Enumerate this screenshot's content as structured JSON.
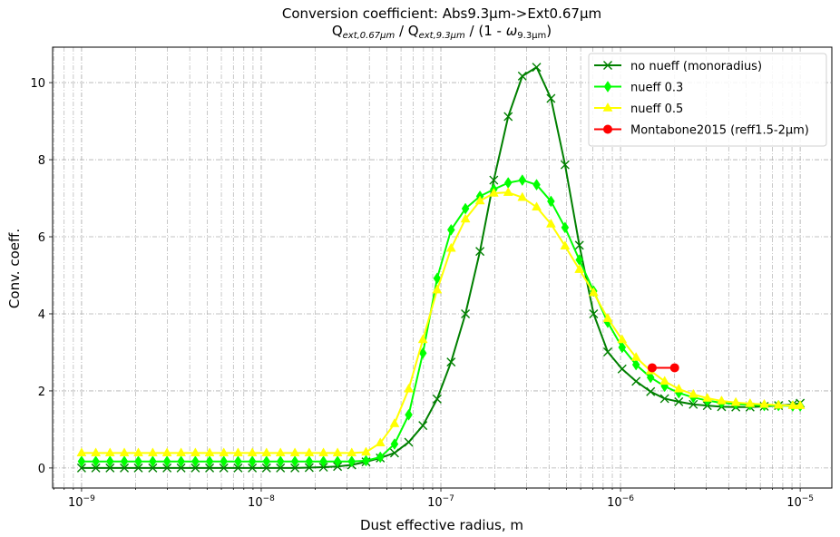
{
  "chart_data": {
    "type": "line",
    "title": "Conversion coefficient: Abs9.3µm->Ext0.67µm",
    "subtitle": {
      "q": "Q",
      "sub1": "ext,0.67µm",
      "slash1": " / Q",
      "sub2": "ext,9.3µm",
      "tail": " / (1 - ",
      "omega": "ω",
      "sub3": "9.3µm",
      "close": ")"
    },
    "xlabel": "Dust effective radius, m",
    "ylabel": "Conv. coeff.",
    "x_scale": "log",
    "xlim": [
      6.9e-10,
      1.5e-05
    ],
    "ylim": [
      -0.52,
      10.92
    ],
    "x_ticks": [
      1e-09,
      1e-08,
      1e-07,
      1e-06,
      1e-05
    ],
    "x_tick_labels": [
      {
        "base": "10",
        "exp": "−9"
      },
      {
        "base": "10",
        "exp": "−8"
      },
      {
        "base": "10",
        "exp": "−7"
      },
      {
        "base": "10",
        "exp": "−6"
      },
      {
        "base": "10",
        "exp": "−5"
      }
    ],
    "y_ticks": [
      0,
      2,
      4,
      6,
      8,
      10
    ],
    "y_tick_labels": [
      "0",
      "2",
      "4",
      "6",
      "8",
      "10"
    ],
    "grid": true,
    "legend_position": "top-right",
    "series": [
      {
        "name": "no nueff (monoradius)",
        "color": "#008000",
        "marker": "x",
        "x": [
          1e-09,
          1.2e-09,
          1.44e-09,
          1.73e-09,
          2.07e-09,
          2.49e-09,
          2.99e-09,
          3.58e-09,
          4.3e-09,
          5.16e-09,
          6.19e-09,
          7.43e-09,
          8.92e-09,
          1.07e-08,
          1.28e-08,
          1.54e-08,
          1.85e-08,
          2.22e-08,
          2.66e-08,
          3.19e-08,
          3.83e-08,
          4.6e-08,
          5.52e-08,
          6.62e-08,
          7.94e-08,
          9.53e-08,
          1.14e-07,
          1.37e-07,
          1.65e-07,
          1.97e-07,
          2.37e-07,
          2.84e-07,
          3.41e-07,
          4.1e-07,
          4.91e-07,
          5.9e-07,
          7.08e-07,
          8.49e-07,
          1.02e-06,
          1.22e-06,
          1.47e-06,
          1.76e-06,
          2.11e-06,
          2.54e-06,
          3.04e-06,
          3.65e-06,
          4.38e-06,
          5.26e-06,
          6.31e-06,
          7.57e-06,
          9.09e-06,
          1e-05
        ],
        "y": [
          0.0,
          0.0,
          0.0,
          0.0,
          0.0,
          0.0,
          0.0,
          0.0,
          0.0,
          0.0,
          0.0,
          0.0,
          0.0,
          0.0,
          0.0,
          0.0,
          0.01,
          0.02,
          0.04,
          0.08,
          0.16,
          0.26,
          0.39,
          0.67,
          1.1,
          1.79,
          2.75,
          4.0,
          5.62,
          7.47,
          9.12,
          10.17,
          10.4,
          9.59,
          7.87,
          5.78,
          4.0,
          3.01,
          2.57,
          2.25,
          1.98,
          1.8,
          1.72,
          1.65,
          1.62,
          1.59,
          1.58,
          1.58,
          1.6,
          1.62,
          1.65,
          1.68
        ]
      },
      {
        "name": "nueff 0.3",
        "color": "#00ff00",
        "marker": "diamond",
        "x": [
          1e-09,
          1.2e-09,
          1.44e-09,
          1.73e-09,
          2.07e-09,
          2.49e-09,
          2.99e-09,
          3.58e-09,
          4.3e-09,
          5.16e-09,
          6.19e-09,
          7.43e-09,
          8.92e-09,
          1.07e-08,
          1.28e-08,
          1.54e-08,
          1.85e-08,
          2.22e-08,
          2.66e-08,
          3.19e-08,
          3.83e-08,
          4.6e-08,
          5.52e-08,
          6.62e-08,
          7.94e-08,
          9.53e-08,
          1.14e-07,
          1.37e-07,
          1.65e-07,
          1.97e-07,
          2.37e-07,
          2.84e-07,
          3.41e-07,
          4.1e-07,
          4.91e-07,
          5.9e-07,
          7.08e-07,
          8.49e-07,
          1.02e-06,
          1.22e-06,
          1.47e-06,
          1.76e-06,
          2.11e-06,
          2.54e-06,
          3.04e-06,
          3.65e-06,
          4.38e-06,
          5.26e-06,
          6.31e-06,
          7.57e-06,
          9.09e-06,
          1e-05
        ],
        "y": [
          0.17,
          0.17,
          0.17,
          0.17,
          0.17,
          0.17,
          0.17,
          0.17,
          0.17,
          0.17,
          0.17,
          0.17,
          0.17,
          0.17,
          0.17,
          0.17,
          0.17,
          0.17,
          0.17,
          0.17,
          0.19,
          0.28,
          0.62,
          1.38,
          2.98,
          4.92,
          6.18,
          6.73,
          7.05,
          7.23,
          7.4,
          7.47,
          7.35,
          6.92,
          6.24,
          5.4,
          4.59,
          3.78,
          3.13,
          2.68,
          2.35,
          2.12,
          1.95,
          1.83,
          1.75,
          1.69,
          1.66,
          1.64,
          1.62,
          1.62,
          1.61,
          1.61
        ]
      },
      {
        "name": "nueff 0.5",
        "color": "#ffff00",
        "marker": "triangle",
        "x": [
          1e-09,
          1.2e-09,
          1.44e-09,
          1.73e-09,
          2.07e-09,
          2.49e-09,
          2.99e-09,
          3.58e-09,
          4.3e-09,
          5.16e-09,
          6.19e-09,
          7.43e-09,
          8.92e-09,
          1.07e-08,
          1.28e-08,
          1.54e-08,
          1.85e-08,
          2.22e-08,
          2.66e-08,
          3.19e-08,
          3.83e-08,
          4.6e-08,
          5.52e-08,
          6.62e-08,
          7.94e-08,
          9.53e-08,
          1.14e-07,
          1.37e-07,
          1.65e-07,
          1.97e-07,
          2.37e-07,
          2.84e-07,
          3.41e-07,
          4.1e-07,
          4.91e-07,
          5.9e-07,
          7.08e-07,
          8.49e-07,
          1.02e-06,
          1.22e-06,
          1.47e-06,
          1.76e-06,
          2.11e-06,
          2.54e-06,
          3.04e-06,
          3.65e-06,
          4.38e-06,
          5.26e-06,
          6.31e-06,
          7.57e-06,
          9.09e-06,
          1e-05
        ],
        "y": [
          0.39,
          0.39,
          0.39,
          0.39,
          0.39,
          0.39,
          0.39,
          0.39,
          0.39,
          0.39,
          0.39,
          0.39,
          0.39,
          0.39,
          0.39,
          0.39,
          0.39,
          0.39,
          0.39,
          0.39,
          0.41,
          0.65,
          1.15,
          2.05,
          3.33,
          4.62,
          5.7,
          6.46,
          6.93,
          7.13,
          7.15,
          7.02,
          6.77,
          6.33,
          5.76,
          5.15,
          4.55,
          3.88,
          3.33,
          2.87,
          2.52,
          2.25,
          2.05,
          1.91,
          1.81,
          1.74,
          1.7,
          1.67,
          1.65,
          1.63,
          1.62,
          1.62
        ]
      },
      {
        "name": "Montabone2015 (reff1.5-2µm)",
        "color": "#ff0000",
        "marker": "circle",
        "x": [
          1.5e-06,
          2e-06
        ],
        "y": [
          2.6,
          2.6
        ]
      }
    ]
  }
}
